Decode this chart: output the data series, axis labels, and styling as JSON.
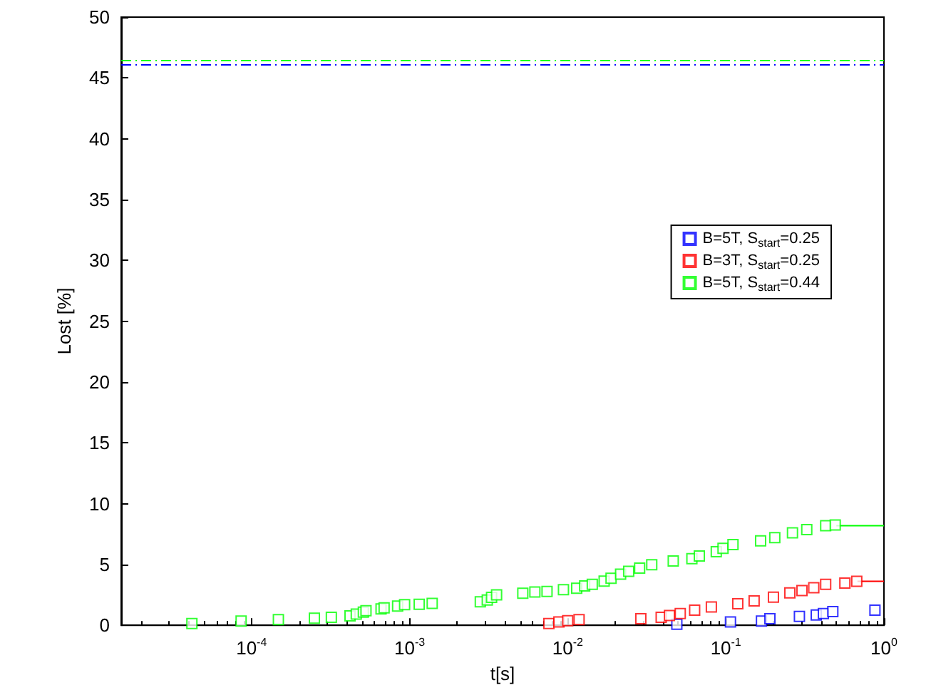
{
  "chart_data": {
    "type": "scatter",
    "xlabel": "t[s]",
    "ylabel": "Lost [%]",
    "log": "x",
    "marker": "square",
    "grid": false,
    "legend": "right",
    "xlim": [
      1.5e-05,
      1
    ],
    "xticks": [
      {
        "value": 0.0001,
        "label": "10$^{-4}$"
      },
      {
        "value": 0.001,
        "label": "10$^{-3}$"
      },
      {
        "value": 0.01,
        "label": "10$^{-2}$"
      },
      {
        "value": 0.1,
        "label": "10$^{-1}$"
      },
      {
        "value": 1,
        "label": "10$^{0}$"
      }
    ],
    "ylim": [
      0,
      50
    ],
    "yticks": [
      0,
      5,
      10,
      15,
      20,
      25,
      30,
      35,
      40,
      45,
      50
    ],
    "series": [
      {
        "name": "B=5T, S$_{start}$=0.25",
        "color": "#0000ff",
        "x": [
          0.049,
          0.107,
          0.168,
          0.19,
          0.292,
          0.373,
          0.414,
          0.475,
          0.877
        ],
        "values": [
          0.08,
          0.27,
          0.35,
          0.54,
          0.73,
          0.85,
          0.96,
          1.12,
          1.24
        ]
      },
      {
        "name": "B=3T, S$_{start}$=0.25",
        "color": "#ff0000",
        "x": [
          0.0076,
          0.0088,
          0.01,
          0.0118,
          0.029,
          0.039,
          0.044,
          0.0515,
          0.0635,
          0.081,
          0.119,
          0.151,
          0.2,
          0.254,
          0.303,
          0.36,
          0.428,
          0.566,
          0.673
        ],
        "values": [
          0.15,
          0.27,
          0.38,
          0.46,
          0.54,
          0.66,
          0.81,
          0.96,
          1.24,
          1.5,
          1.77,
          2.0,
          2.31,
          2.66,
          2.86,
          3.09,
          3.36,
          3.47,
          3.62
        ]
      },
      {
        "name": "B=5T, S$_{start}$=0.44",
        "color": "#00ff00",
        "x": [
          4.2e-05,
          8.6e-05,
          0.000148,
          0.00025,
          0.00032,
          0.00042,
          0.00046,
          0.00051,
          0.00053,
          0.00066,
          0.00069,
          0.00084,
          0.00093,
          0.00115,
          0.00139,
          0.0028,
          0.0031,
          0.0033,
          0.00355,
          0.0052,
          0.0062,
          0.0074,
          0.0094,
          0.0114,
          0.0128,
          0.0143,
          0.017,
          0.0188,
          0.0216,
          0.0243,
          0.0285,
          0.034,
          0.0465,
          0.061,
          0.068,
          0.087,
          0.096,
          0.111,
          0.166,
          0.204,
          0.264,
          0.325,
          0.428,
          0.492
        ],
        "values": [
          0.15,
          0.35,
          0.46,
          0.58,
          0.65,
          0.77,
          0.92,
          1.08,
          1.2,
          1.35,
          1.43,
          1.58,
          1.7,
          1.73,
          1.8,
          1.93,
          2.08,
          2.3,
          2.5,
          2.63,
          2.74,
          2.78,
          2.93,
          3.05,
          3.24,
          3.36,
          3.63,
          3.86,
          4.2,
          4.44,
          4.7,
          4.98,
          5.28,
          5.47,
          5.7,
          6.05,
          6.32,
          6.63,
          6.94,
          7.21,
          7.6,
          7.87,
          8.18,
          8.25
        ]
      },
      {
        "type": "line",
        "color": "#00ff00",
        "line_style": "solid",
        "marker": "none",
        "x": [
          0.5,
          1
        ],
        "values": [
          8.18,
          8.18
        ]
      },
      {
        "type": "line",
        "color": "#ff0000",
        "line_style": "solid",
        "marker": "none",
        "x": [
          0.68,
          1
        ],
        "values": [
          3.62,
          3.62
        ]
      }
    ],
    "ref_lines": [
      {
        "axis": "y",
        "value": 46.1,
        "color": "#0000ff",
        "line_style": "dashdot"
      },
      {
        "axis": "y",
        "value": 46.4,
        "color": "#00ff00",
        "line_style": "dashdot"
      }
    ]
  }
}
